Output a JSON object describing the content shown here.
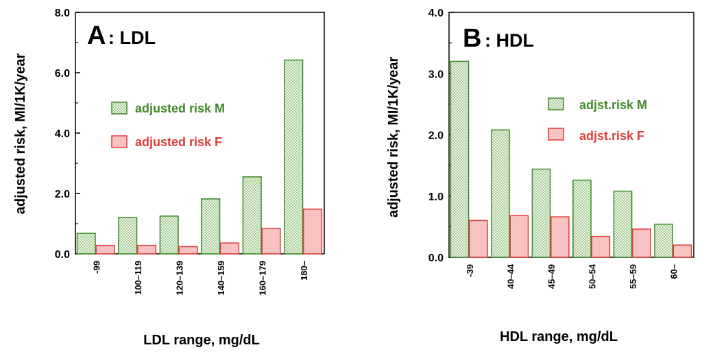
{
  "colors": {
    "male_stroke": "#3f8a2a",
    "male_fill": "#eef7e6",
    "male_dot": "#3f8a2a",
    "female_stroke": "#e03a3a",
    "female_fill": "#f7c2c2",
    "axis": "#000000"
  },
  "chart_data": [
    {
      "type": "bar",
      "panel_letter": "A",
      "panel_name": ": LDL",
      "title": "A: LDL",
      "xlabel": "LDL range, mg/dL",
      "ylabel": "adjusted risk, MI/1K/year",
      "ylim": [
        0,
        8.0
      ],
      "yticks": [
        "0.0",
        "2.0",
        "4.0",
        "6.0",
        "8.0"
      ],
      "categories": [
        "-99",
        "100–119",
        "120–139",
        "140–159",
        "160–179",
        "180–"
      ],
      "series": [
        {
          "name": "adjusted risk M",
          "values": [
            0.68,
            1.2,
            1.25,
            1.82,
            2.55,
            6.42
          ]
        },
        {
          "name": "adjusted risk F",
          "values": [
            0.28,
            0.28,
            0.24,
            0.36,
            0.84,
            1.48
          ]
        }
      ],
      "legend": [
        "adjusted risk M",
        "adjusted risk F"
      ]
    },
    {
      "type": "bar",
      "panel_letter": "B",
      "panel_name": ": HDL",
      "title": "B: HDL",
      "xlabel": "HDL range, mg/dL",
      "ylabel": "adjusted risk, MI/1K/year",
      "ylim": [
        0,
        4.0
      ],
      "yticks": [
        "0.0",
        "1.0",
        "2.0",
        "3.0",
        "4.0"
      ],
      "categories": [
        "-39",
        "40–44",
        "45–49",
        "50–54",
        "55–59",
        "60–"
      ],
      "series": [
        {
          "name": "adjst.risk M",
          "values": [
            3.2,
            2.08,
            1.44,
            1.26,
            1.08,
            0.54
          ]
        },
        {
          "name": "adjst.risk F",
          "values": [
            0.6,
            0.68,
            0.66,
            0.34,
            0.46,
            0.2
          ]
        }
      ],
      "legend": [
        "adjst.risk M",
        "adjst.risk F"
      ]
    }
  ]
}
